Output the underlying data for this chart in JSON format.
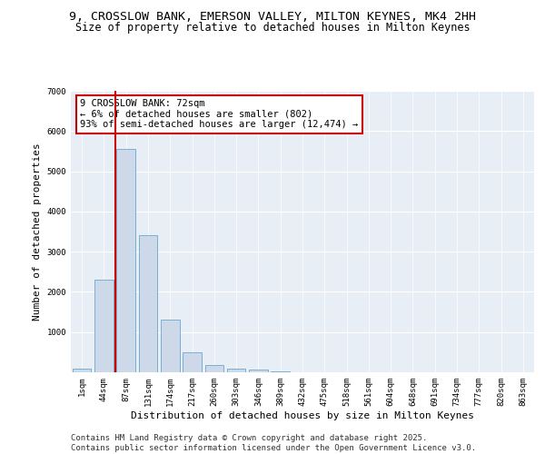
{
  "title_line1": "9, CROSSLOW BANK, EMERSON VALLEY, MILTON KEYNES, MK4 2HH",
  "title_line2": "Size of property relative to detached houses in Milton Keynes",
  "xlabel": "Distribution of detached houses by size in Milton Keynes",
  "ylabel": "Number of detached properties",
  "categories": [
    "1sqm",
    "44sqm",
    "87sqm",
    "131sqm",
    "174sqm",
    "217sqm",
    "260sqm",
    "303sqm",
    "346sqm",
    "389sqm",
    "432sqm",
    "475sqm",
    "518sqm",
    "561sqm",
    "604sqm",
    "648sqm",
    "691sqm",
    "734sqm",
    "777sqm",
    "820sqm",
    "863sqm"
  ],
  "values": [
    100,
    2300,
    5550,
    3420,
    1320,
    500,
    185,
    90,
    60,
    20,
    0,
    0,
    0,
    0,
    0,
    0,
    0,
    0,
    0,
    0,
    0
  ],
  "bar_color": "#cdd9e8",
  "bar_edge_color": "#7aafd4",
  "vline_color": "#cc0000",
  "annotation_title": "9 CROSSLOW BANK: 72sqm",
  "annotation_line2": "← 6% of detached houses are smaller (802)",
  "annotation_line3": "93% of semi-detached houses are larger (12,474) →",
  "annotation_box_color": "#cc0000",
  "ylim": [
    0,
    7000
  ],
  "yticks": [
    0,
    1000,
    2000,
    3000,
    4000,
    5000,
    6000,
    7000
  ],
  "bg_color": "#ffffff",
  "plot_bg_color": "#e8eef5",
  "footer_line1": "Contains HM Land Registry data © Crown copyright and database right 2025.",
  "footer_line2": "Contains public sector information licensed under the Open Government Licence v3.0.",
  "title_fontsize": 9.5,
  "subtitle_fontsize": 8.5,
  "axis_label_fontsize": 8,
  "tick_fontsize": 6.5,
  "annotation_fontsize": 7.5,
  "footer_fontsize": 6.5
}
